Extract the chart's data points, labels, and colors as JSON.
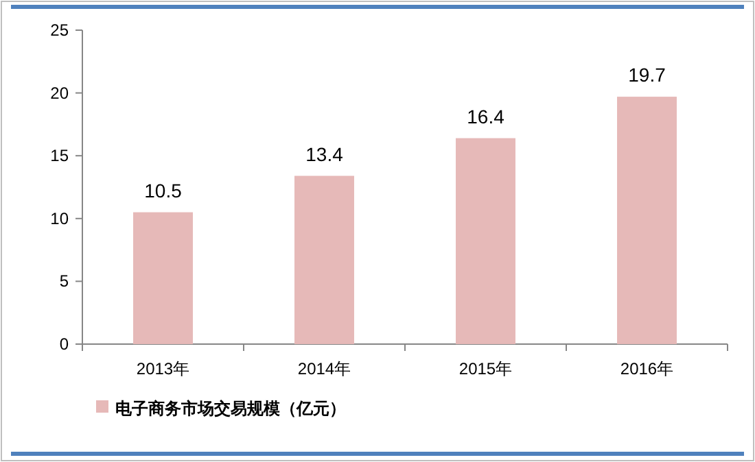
{
  "chart_data": {
    "type": "bar",
    "categories": [
      "2013年",
      "2014年",
      "2015年",
      "2016年"
    ],
    "series": [
      {
        "name": "电子商务市场交易规模（亿元）",
        "color": "#e6b9b8",
        "values": [
          10.5,
          13.4,
          16.4,
          19.7
        ]
      }
    ],
    "ylim": [
      0,
      25
    ],
    "yticks": [
      0,
      5,
      10,
      15,
      20,
      25
    ],
    "data_labels": true,
    "legend": "bottom left",
    "grid": false
  }
}
